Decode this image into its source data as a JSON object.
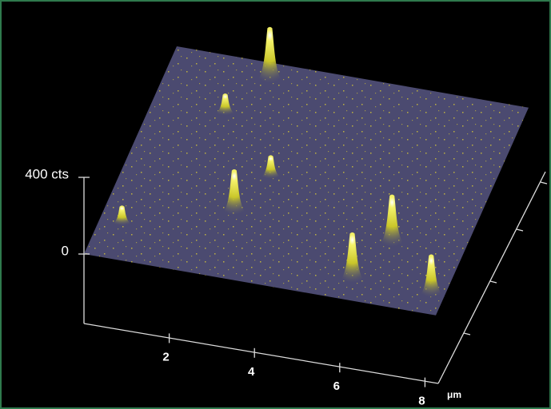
{
  "chart_data": {
    "type": "surface",
    "x": [
      2.28,
      1.64,
      3.2,
      2.77,
      0.5,
      6.4,
      5.9,
      7.7
    ],
    "y": [
      7.38,
      5.96,
      3.97,
      2.45,
      1.38,
      2.29,
      0.76,
      0.74
    ],
    "values": [
      270,
      90,
      100,
      215,
      80,
      250,
      240,
      200
    ],
    "xlim": [
      0,
      8
    ],
    "ylim": [
      0,
      8
    ],
    "zlim": [
      0,
      400
    ],
    "xticks": [
      2,
      4,
      6,
      8
    ],
    "zticks": [
      {
        "value": 0,
        "label": "0"
      },
      {
        "value": 400,
        "label": "400 cts"
      }
    ],
    "xlabel": "μm",
    "color": "#4b4a70"
  }
}
